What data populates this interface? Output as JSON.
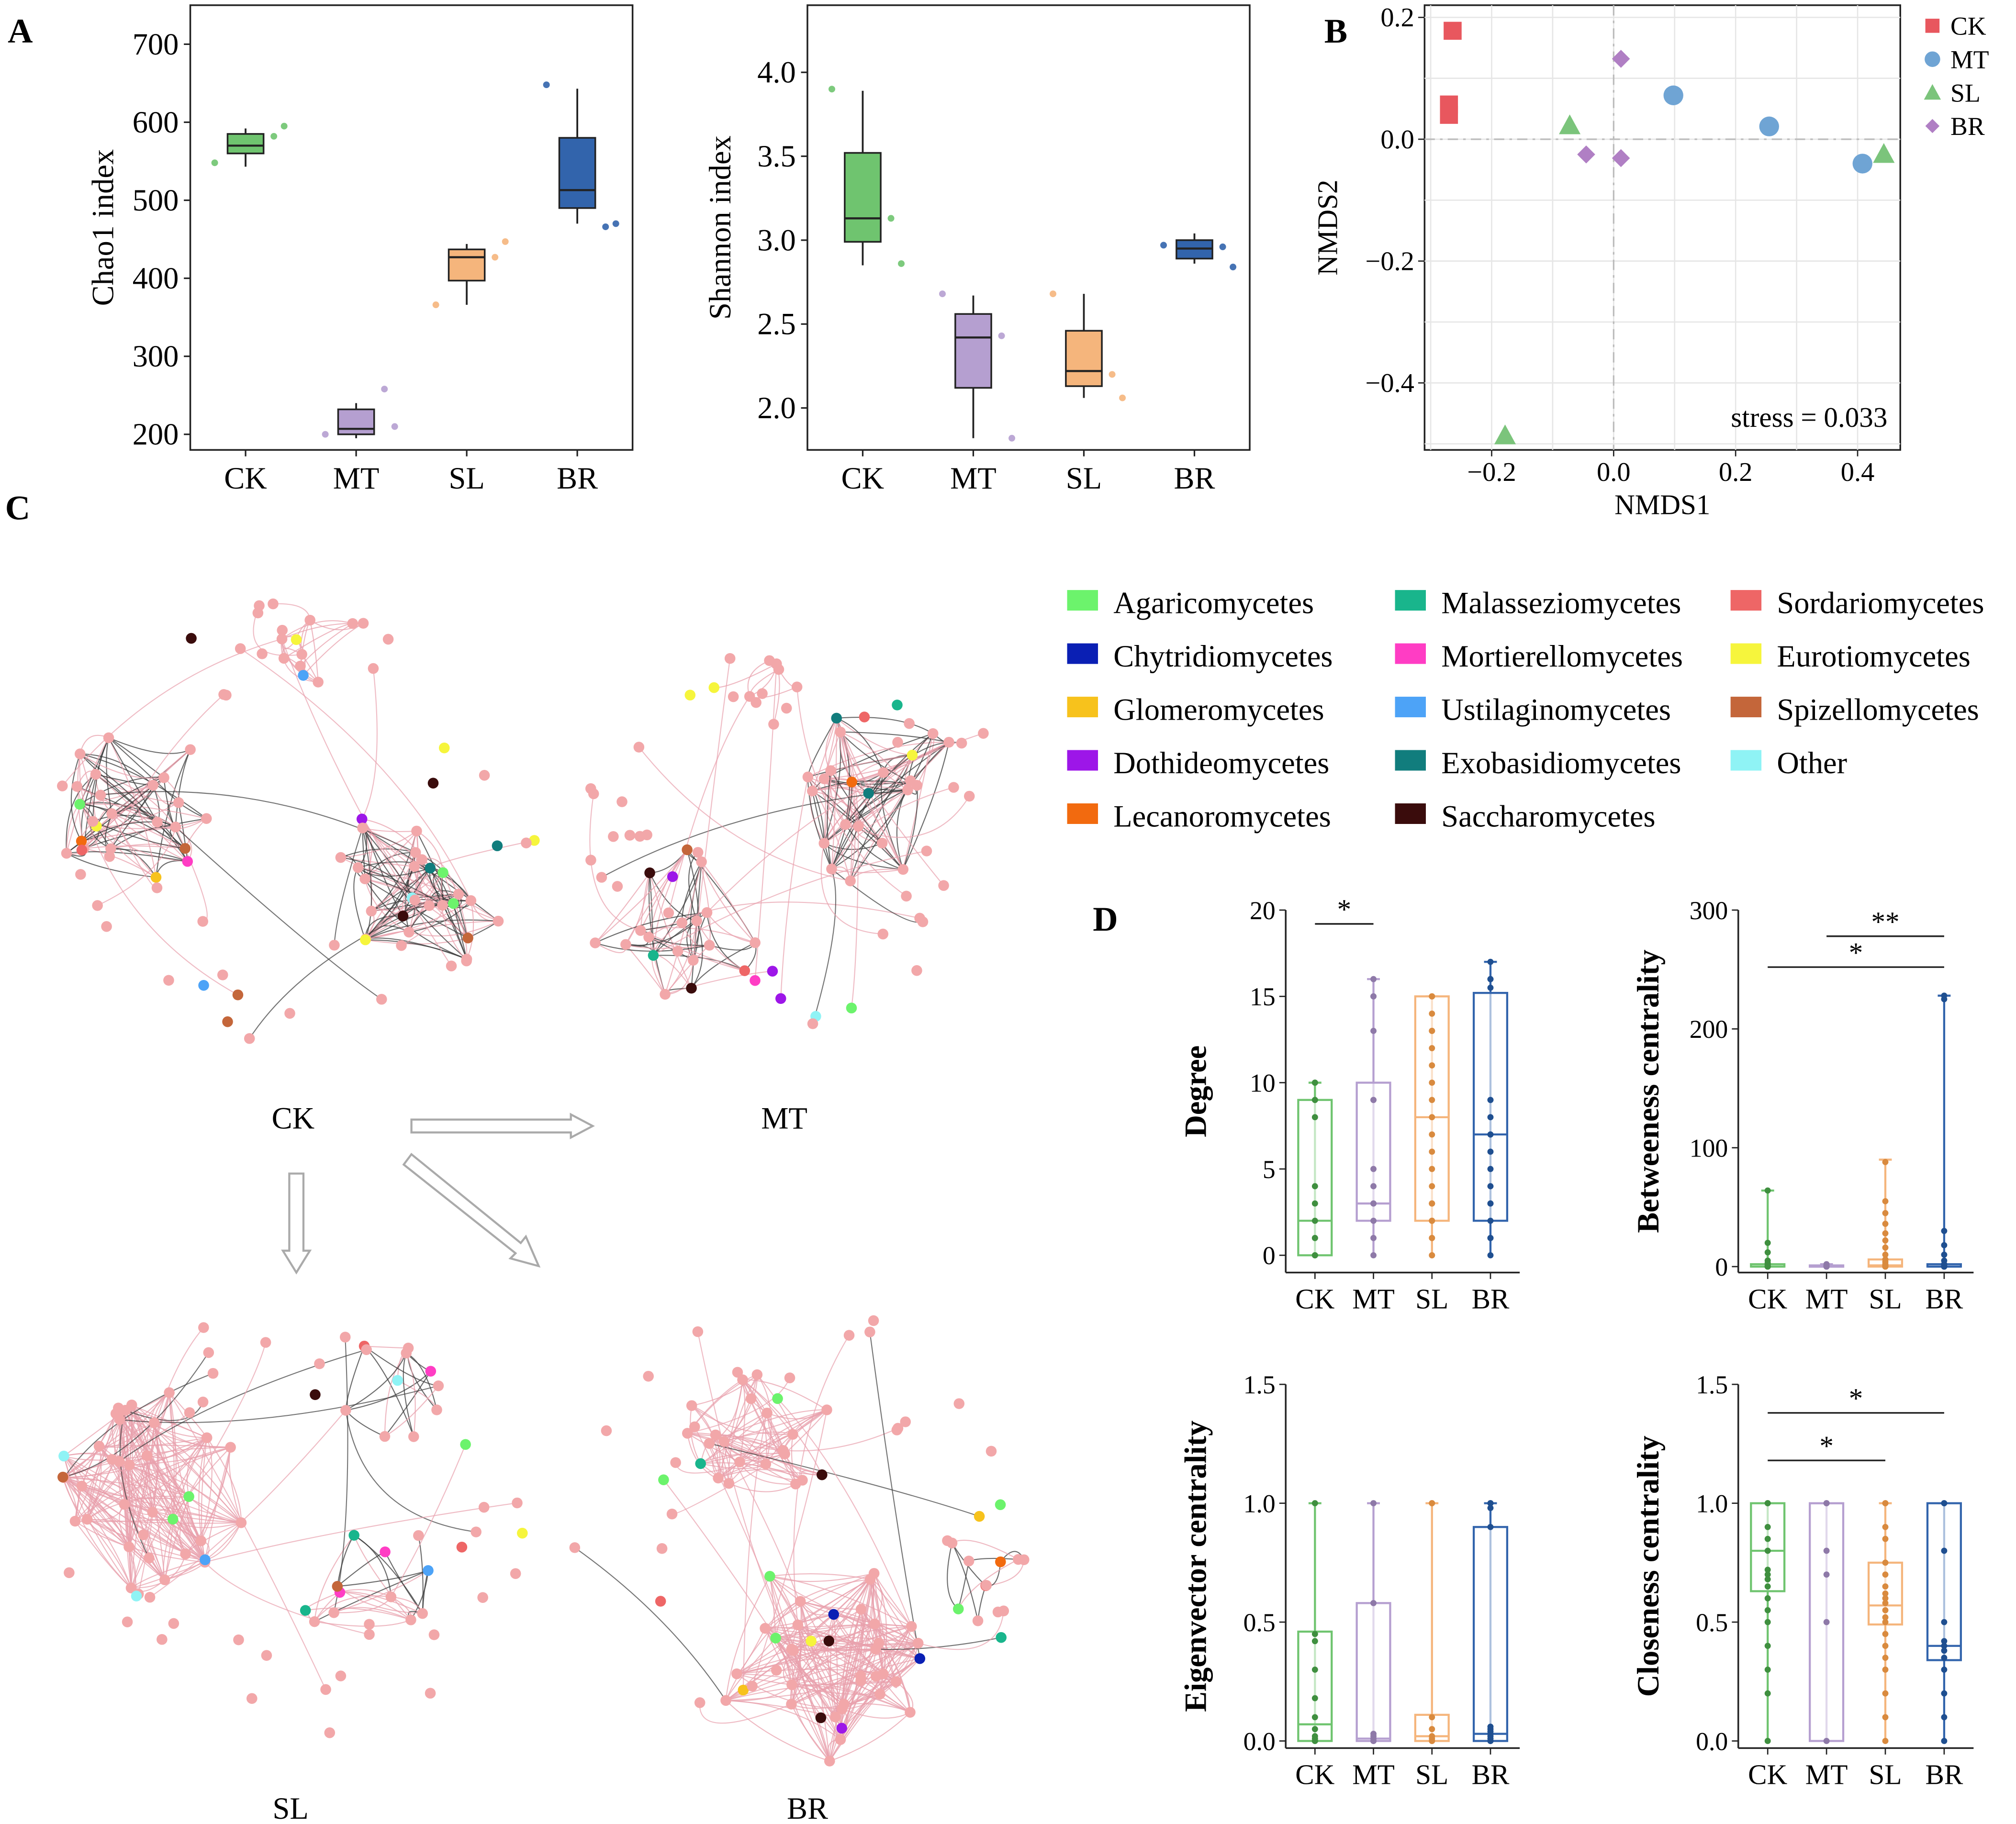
{
  "colors": {
    "CK": "#6fc46f",
    "MT": "#b59fd0",
    "SL": "#f5b57c",
    "BR": "#3264ac",
    "CKd": "#3f8f3f",
    "MTd": "#8e79a8",
    "SLd": "#d98a3e",
    "BRd": "#1f4f90",
    "edgePink": "#e8a0ac",
    "edgeBlack": "#3a3a3a",
    "node": "#f2a7a9"
  },
  "panels": {
    "A": "A",
    "B": "B",
    "C": "C",
    "D": "D"
  },
  "chart_data": [
    {
      "type": "box",
      "id": "chao1",
      "ylabel": "Chao1 index",
      "categories": [
        "CK",
        "MT",
        "SL",
        "BR"
      ],
      "ylim": [
        180,
        750
      ],
      "ticks": [
        200,
        300,
        400,
        500,
        600,
        700
      ],
      "boxes": [
        {
          "min": 543,
          "q1": 560,
          "med": 570,
          "q3": 585,
          "max": 592
        },
        {
          "min": 195,
          "q1": 200,
          "med": 207,
          "q3": 232,
          "max": 240
        },
        {
          "min": 366,
          "q1": 397,
          "med": 427,
          "q3": 437,
          "max": 444
        },
        {
          "min": 470,
          "q1": 490,
          "med": 513,
          "q3": 580,
          "max": 643
        }
      ],
      "points": [
        [
          548,
          582,
          595
        ],
        [
          200,
          258,
          210
        ],
        [
          366,
          427,
          447
        ],
        [
          648,
          466,
          470
        ]
      ]
    },
    {
      "type": "box",
      "id": "shannon",
      "ylabel": "Shannon index",
      "categories": [
        "CK",
        "MT",
        "SL",
        "BR"
      ],
      "ylim": [
        1.75,
        4.4
      ],
      "ticks": [
        2.0,
        2.5,
        3.0,
        3.5,
        4.0
      ],
      "boxes": [
        {
          "min": 2.85,
          "q1": 2.99,
          "med": 3.13,
          "q3": 3.52,
          "max": 3.89
        },
        {
          "min": 1.82,
          "q1": 2.12,
          "med": 2.42,
          "q3": 2.56,
          "max": 2.67
        },
        {
          "min": 2.06,
          "q1": 2.13,
          "med": 2.22,
          "q3": 2.46,
          "max": 2.68
        },
        {
          "min": 2.86,
          "q1": 2.89,
          "med": 2.95,
          "q3": 3.0,
          "max": 3.04
        }
      ],
      "points": [
        [
          3.9,
          3.13,
          2.86
        ],
        [
          2.68,
          2.43,
          1.82
        ],
        [
          2.68,
          2.2,
          2.06
        ],
        [
          2.97,
          2.96,
          2.84
        ]
      ]
    },
    {
      "type": "scatter",
      "id": "nmds",
      "xlabel": "NMDS1",
      "ylabel": "NMDS2",
      "xlim": [
        -0.31,
        0.47
      ],
      "ylim": [
        -0.51,
        0.22
      ],
      "xticks": [
        -0.2,
        0.0,
        0.2,
        0.4
      ],
      "yticks": [
        -0.4,
        -0.2,
        0.0,
        0.2
      ],
      "annotation": "stress = 0.033",
      "legend": [
        "CK",
        "MT",
        "SL",
        "BR"
      ],
      "series": [
        {
          "name": "CK",
          "shape": "square",
          "points": [
            [
              -0.264,
              0.178
            ],
            [
              -0.27,
              0.057
            ],
            [
              -0.27,
              0.04
            ]
          ]
        },
        {
          "name": "MT",
          "shape": "circle",
          "points": [
            [
              0.098,
              0.072
            ],
            [
              0.255,
              0.021
            ],
            [
              0.408,
              -0.04
            ]
          ]
        },
        {
          "name": "SL",
          "shape": "triangle",
          "points": [
            [
              -0.072,
              0.023
            ],
            [
              0.443,
              -0.024
            ],
            [
              -0.178,
              -0.486
            ]
          ]
        },
        {
          "name": "BR",
          "shape": "diamond",
          "points": [
            [
              0.012,
              0.132
            ],
            [
              -0.045,
              -0.025
            ],
            [
              0.012,
              -0.031
            ]
          ]
        }
      ]
    },
    {
      "type": "box",
      "id": "degree",
      "ylabel": "Degree",
      "categories": [
        "CK",
        "MT",
        "SL",
        "BR"
      ],
      "ylim": [
        -1,
        20
      ],
      "ticks": [
        0,
        5,
        10,
        15,
        20
      ],
      "boxes": [
        {
          "min": 0,
          "q1": 0,
          "med": 2,
          "q3": 9,
          "max": 10
        },
        {
          "min": 0,
          "q1": 2,
          "med": 3,
          "q3": 10,
          "max": 16
        },
        {
          "min": 0,
          "q1": 2,
          "med": 8,
          "q3": 15,
          "max": 15
        },
        {
          "min": 0,
          "q1": 2,
          "med": 7,
          "q3": 15.2,
          "max": 17
        }
      ],
      "points": [
        [
          0,
          0,
          0,
          1,
          1,
          2,
          3,
          4,
          8,
          9,
          9,
          10,
          10
        ],
        [
          0,
          1,
          2,
          3,
          3,
          4,
          5,
          9,
          9,
          13,
          15,
          15,
          16
        ],
        [
          0,
          0,
          1,
          1,
          2,
          2,
          2,
          3,
          3,
          3,
          4,
          5,
          6,
          7,
          8,
          9,
          10,
          11,
          12,
          13,
          13,
          13,
          14,
          15,
          15,
          15
        ],
        [
          0,
          1,
          1,
          2,
          3,
          3,
          4,
          5,
          6,
          7,
          7,
          8,
          9,
          9,
          15.5,
          16,
          16,
          17
        ]
      ],
      "sig": [
        {
          "from": 0,
          "to": 1,
          "label": "*",
          "y": 19.2
        }
      ]
    },
    {
      "type": "box",
      "id": "betweenness",
      "ylabel": "Betweeness centrality",
      "categories": [
        "CK",
        "MT",
        "SL",
        "BR"
      ],
      "ylim": [
        -5,
        300
      ],
      "ticks": [
        0,
        100,
        200,
        300
      ],
      "boxes": [
        {
          "min": 0,
          "q1": 0,
          "med": 0,
          "q3": 2,
          "max": 64
        },
        {
          "min": 0,
          "q1": 0,
          "med": 0,
          "q3": 1,
          "max": 2
        },
        {
          "min": 0,
          "q1": 0,
          "med": 1,
          "q3": 6,
          "max": 90
        },
        {
          "min": 0,
          "q1": 0,
          "med": 0,
          "q3": 2,
          "max": 228
        }
      ],
      "points": [
        [
          0,
          0,
          0,
          0,
          1,
          2,
          3,
          5,
          12,
          20,
          64
        ],
        [
          0,
          0,
          0,
          0,
          1,
          1,
          2
        ],
        [
          0,
          0,
          0,
          1,
          2,
          4,
          6,
          10,
          16,
          22,
          28,
          36,
          45,
          55,
          88
        ],
        [
          0,
          0,
          0,
          0,
          1,
          2,
          5,
          10,
          18,
          30,
          225,
          228
        ]
      ],
      "sig": [
        {
          "from": 1,
          "to": 3,
          "label": "**",
          "y": 278
        },
        {
          "from": 0,
          "to": 3,
          "label": "*",
          "y": 252
        }
      ]
    },
    {
      "type": "box",
      "id": "eigenvector",
      "ylabel": "Eigenvector centrality",
      "categories": [
        "CK",
        "MT",
        "SL",
        "BR"
      ],
      "ylim": [
        -0.03,
        1.5
      ],
      "ticks": [
        0.0,
        0.5,
        1.0,
        1.5
      ],
      "boxes": [
        {
          "min": 0,
          "q1": 0,
          "med": 0.07,
          "q3": 0.46,
          "max": 1.0
        },
        {
          "min": 0,
          "q1": 0,
          "med": 0.01,
          "q3": 0.58,
          "max": 1.0
        },
        {
          "min": 0,
          "q1": 0,
          "med": 0.02,
          "q3": 0.11,
          "max": 1.0
        },
        {
          "min": 0,
          "q1": 0,
          "med": 0.03,
          "q3": 0.9,
          "max": 1.0
        }
      ],
      "points": [
        [
          0,
          0,
          0.01,
          0.02,
          0.05,
          0.1,
          0.18,
          0.3,
          0.42,
          0.45,
          1.0
        ],
        [
          0,
          0,
          0.01,
          0.02,
          0.03,
          0.58,
          1.0
        ],
        [
          0,
          0,
          0.01,
          0.02,
          0.05,
          0.1,
          1.0,
          1.0
        ],
        [
          0,
          0,
          0.01,
          0.02,
          0.03,
          0.04,
          0.05,
          0.06,
          0.9,
          0.98,
          1.0,
          1.0
        ]
      ]
    },
    {
      "type": "box",
      "id": "closeness",
      "ylabel": "Closeness centrality",
      "categories": [
        "CK",
        "MT",
        "SL",
        "BR"
      ],
      "ylim": [
        -0.03,
        1.5
      ],
      "ticks": [
        0.0,
        0.5,
        1.0,
        1.5
      ],
      "boxes": [
        {
          "min": 0,
          "q1": 0.63,
          "med": 0.8,
          "q3": 1.0,
          "max": 1.0
        },
        {
          "min": 0,
          "q1": 0,
          "med": 1.0,
          "q3": 1.0,
          "max": 1.0
        },
        {
          "min": 0,
          "q1": 0.49,
          "med": 0.57,
          "q3": 0.75,
          "max": 1.0
        },
        {
          "min": 0,
          "q1": 0.34,
          "med": 0.4,
          "q3": 1.0,
          "max": 1.0
        }
      ],
      "points": [
        [
          0,
          0.2,
          0.3,
          0.4,
          0.5,
          0.55,
          0.6,
          0.65,
          0.68,
          0.7,
          0.72,
          0.8,
          0.85,
          0.9,
          1.0,
          1.0
        ],
        [
          0,
          0.5,
          0.7,
          0.8,
          1.0,
          1.0
        ],
        [
          0,
          0.1,
          0.2,
          0.3,
          0.35,
          0.4,
          0.45,
          0.5,
          0.52,
          0.55,
          0.58,
          0.6,
          0.62,
          0.65,
          0.7,
          0.75,
          0.85,
          0.9,
          1.0,
          1.0
        ],
        [
          0,
          0.1,
          0.2,
          0.3,
          0.35,
          0.38,
          0.4,
          0.42,
          0.5,
          0.8,
          1.0,
          1.0
        ]
      ],
      "sig": [
        {
          "from": 0,
          "to": 2,
          "label": "*",
          "y": 1.18
        },
        {
          "from": 0,
          "to": 3,
          "label": "*",
          "y": 1.38
        }
      ]
    }
  ],
  "networks": {
    "labels": [
      "CK",
      "MT",
      "SL",
      "BR"
    ]
  },
  "legend_classes": [
    {
      "name": "Agaricomycetes",
      "color": "#6cf36c"
    },
    {
      "name": "Malasseziomycetes",
      "color": "#19b58c"
    },
    {
      "name": "Sordariomycetes",
      "color": "#ee6666"
    },
    {
      "name": "Chytridiomycetes",
      "color": "#0a1fb4"
    },
    {
      "name": "Mortierellomycetes",
      "color": "#ff3dc4"
    },
    {
      "name": "Eurotiomycetes",
      "color": "#f6f53c"
    },
    {
      "name": "Glomeromycetes",
      "color": "#f7c21c"
    },
    {
      "name": "Ustilaginomycetes",
      "color": "#4da3f7"
    },
    {
      "name": "Spizellomycetes",
      "color": "#c4663a"
    },
    {
      "name": "Dothideomycetes",
      "color": "#9d16e8"
    },
    {
      "name": "Exobasidiomycetes",
      "color": "#117d7d"
    },
    {
      "name": "Other",
      "color": "#8ff3f5"
    },
    {
      "name": "Lecanoromycetes",
      "color": "#f26a0f"
    },
    {
      "name": "Saccharomycetes",
      "color": "#3a0c0c"
    }
  ]
}
